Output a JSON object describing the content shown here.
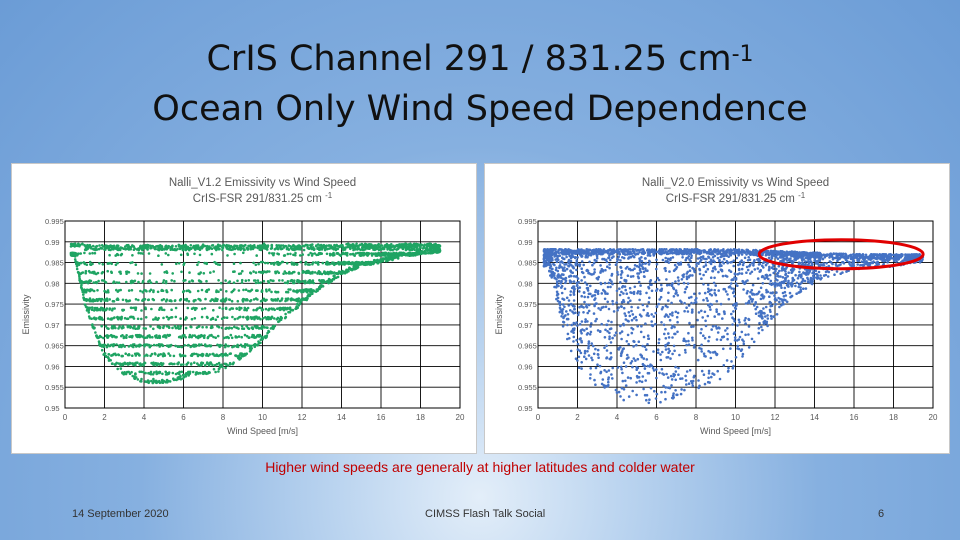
{
  "slide": {
    "title_line1": "CrIS Channel 291 / 831.25 cm",
    "title_sup": "-1",
    "title_line2": "Ocean Only Wind Speed Dependence",
    "caption": "Higher wind speeds are generally at higher latitudes and  colder water",
    "footer_date": "14 September 2020",
    "footer_event": "CIMSS Flash Talk Social",
    "page_number": "6"
  },
  "chart_data": [
    {
      "type": "scatter",
      "title": "Nalli_V1.2 Emissivity vs Wind Speed",
      "subtitle": "CrIS-FSR 291/831.25 cm",
      "subtitle_sup": "-1",
      "xlabel": "Wind Speed [m/s]",
      "ylabel": "Emissivity",
      "xlim": [
        0,
        20
      ],
      "ylim": [
        0.95,
        0.995
      ],
      "xticks": [
        "0",
        "2",
        "4",
        "6",
        "8",
        "10",
        "12",
        "14",
        "16",
        "18",
        "20"
      ],
      "yticks": [
        "0.95",
        "0.955",
        "0.96",
        "0.965",
        "0.97",
        "0.975",
        "0.98",
        "0.985",
        "0.99",
        "0.995"
      ],
      "grid": true,
      "color": "#1fa463",
      "series": [
        {
          "x": [
            0.5,
            1,
            1.5,
            2,
            3,
            4,
            5,
            6,
            7,
            8,
            9,
            10,
            11,
            12,
            13,
            14,
            15,
            16,
            17,
            18,
            19
          ],
          "upper": [
            0.9892,
            0.9892,
            0.9892,
            0.9892,
            0.9892,
            0.9892,
            0.9892,
            0.9892,
            0.9892,
            0.9892,
            0.9892,
            0.9892,
            0.9892,
            0.9892,
            0.9892,
            0.9892,
            0.9892,
            0.9892,
            0.9892,
            0.9892,
            0.9892
          ],
          "lower": [
            0.986,
            0.975,
            0.968,
            0.962,
            0.958,
            0.956,
            0.956,
            0.957,
            0.958,
            0.959,
            0.962,
            0.966,
            0.971,
            0.975,
            0.979,
            0.982,
            0.984,
            0.985,
            0.986,
            0.987,
            0.9875
          ]
        }
      ]
    },
    {
      "type": "scatter",
      "title": "Nalli_V2.0 Emissivity vs Wind Speed",
      "subtitle": "CrIS-FSR 291/831.25 cm",
      "subtitle_sup": "-1",
      "xlabel": "Wind Speed [m/s]",
      "ylabel": "Emissivity",
      "xlim": [
        0,
        20
      ],
      "ylim": [
        0.95,
        0.995
      ],
      "xticks": [
        "0",
        "2",
        "4",
        "6",
        "8",
        "10",
        "12",
        "14",
        "16",
        "18",
        "20"
      ],
      "yticks": [
        "0.95",
        "0.955",
        "0.96",
        "0.965",
        "0.97",
        "0.975",
        "0.98",
        "0.985",
        "0.99",
        "0.995"
      ],
      "grid": true,
      "color": "#4472c4",
      "highlight": {
        "shape": "ellipse",
        "color": "#e00000",
        "x_range": [
          11.2,
          19.5
        ],
        "y_range": [
          0.9835,
          0.9905
        ]
      },
      "series": [
        {
          "x": [
            0.5,
            1,
            1.5,
            2,
            3,
            4,
            5,
            6,
            7,
            8,
            9,
            10,
            11,
            12,
            13,
            14,
            15,
            16,
            17,
            18,
            19
          ],
          "upper": [
            0.9882,
            0.9882,
            0.9882,
            0.9882,
            0.9882,
            0.9882,
            0.9882,
            0.9882,
            0.9882,
            0.9882,
            0.9882,
            0.9882,
            0.988,
            0.9878,
            0.9876,
            0.9874,
            0.9872,
            0.987,
            0.987,
            0.987,
            0.987
          ],
          "lower": [
            0.984,
            0.975,
            0.965,
            0.96,
            0.955,
            0.952,
            0.951,
            0.951,
            0.952,
            0.953,
            0.956,
            0.96,
            0.966,
            0.972,
            0.977,
            0.98,
            0.982,
            0.983,
            0.984,
            0.984,
            0.985
          ]
        }
      ]
    }
  ]
}
